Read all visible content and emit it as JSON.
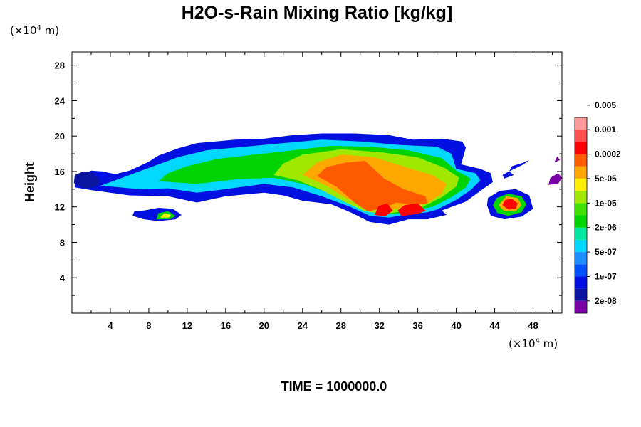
{
  "chart_data": {
    "type": "heatmap",
    "title": "H2O-s-Rain Mixing Ratio [kg/kg]",
    "ylabel": "Height",
    "y_unit": "(×10⁴ m)",
    "x_unit": "(×10⁴ m)",
    "unit_base": "(×10",
    "unit_exp": "4",
    "unit_tail": " m)",
    "footer": "TIME = 1000000.0",
    "xlim": [
      0,
      51
    ],
    "ylim": [
      0,
      29.5
    ],
    "x_ticks": [
      4,
      8,
      12,
      16,
      20,
      24,
      28,
      32,
      36,
      40,
      44,
      48
    ],
    "y_ticks": [
      4,
      8,
      12,
      16,
      20,
      24,
      28
    ],
    "x_tick_labels": [
      "4",
      "8",
      "12",
      "16",
      "20",
      "24",
      "28",
      "32",
      "36",
      "40",
      "44",
      "48"
    ],
    "y_tick_labels": [
      "4",
      "8",
      "12",
      "16",
      "20",
      "24",
      "28"
    ],
    "colorbar": {
      "colors": [
        "#7a00a8",
        "#0a14a0",
        "#0010e0",
        "#0050ff",
        "#1e8cff",
        "#00d8ff",
        "#00e6a0",
        "#00d400",
        "#40e000",
        "#a0e800",
        "#ffee00",
        "#ffa800",
        "#ff5a00",
        "#ff0000",
        "#ff5050",
        "#ff9a9a"
      ],
      "labels": [
        "2e-08",
        "1e-07",
        "5e-07",
        "2e-06",
        "1e-05",
        "5e-05",
        "0.0002",
        "0.001",
        "0.005"
      ]
    },
    "regions": [
      {
        "name": "main-cloud",
        "level": 2,
        "points": [
          [
            0.3,
            14.2
          ],
          [
            2,
            13.9
          ],
          [
            6,
            13.3
          ],
          [
            10,
            13.2
          ],
          [
            13,
            12.5
          ],
          [
            16,
            13.2
          ],
          [
            20,
            13.6
          ],
          [
            22,
            13.3
          ],
          [
            24,
            12.7
          ],
          [
            27,
            12.3
          ],
          [
            29,
            11.4
          ],
          [
            31,
            10.3
          ],
          [
            33,
            10
          ],
          [
            35,
            10.6
          ],
          [
            37,
            10.6
          ],
          [
            39,
            11.1
          ],
          [
            38.5,
            11.6
          ],
          [
            41,
            12.6
          ],
          [
            42.5,
            13.8
          ],
          [
            43.8,
            14.8
          ],
          [
            43.6,
            15.8
          ],
          [
            42.5,
            16.3
          ],
          [
            40.5,
            16.8
          ],
          [
            41,
            18.7
          ],
          [
            40.6,
            19.4
          ],
          [
            38.5,
            19.7
          ],
          [
            35.5,
            19.6
          ],
          [
            33,
            20.1
          ],
          [
            29.5,
            20.3
          ],
          [
            26,
            20.3
          ],
          [
            23,
            20.1
          ],
          [
            20,
            19.7
          ],
          [
            17,
            19.6
          ],
          [
            13,
            19.2
          ],
          [
            11,
            18.6
          ],
          [
            9,
            17.8
          ],
          [
            8,
            17.1
          ],
          [
            6,
            16.1
          ],
          [
            4.5,
            15.7
          ],
          [
            3.2,
            16
          ],
          [
            2,
            16.1
          ],
          [
            0.5,
            15.4
          ]
        ]
      },
      {
        "name": "main-cloud",
        "level": 5,
        "points": [
          [
            3,
            14.4
          ],
          [
            7,
            14
          ],
          [
            10,
            14.1
          ],
          [
            13,
            13.6
          ],
          [
            16,
            14
          ],
          [
            20,
            14.6
          ],
          [
            23,
            14.2
          ],
          [
            26,
            13.2
          ],
          [
            29,
            12
          ],
          [
            31,
            11
          ],
          [
            33,
            10.8
          ],
          [
            35,
            11.2
          ],
          [
            37,
            11.4
          ],
          [
            38,
            11.7
          ],
          [
            40,
            12.8
          ],
          [
            41.5,
            13.9
          ],
          [
            42.5,
            15
          ],
          [
            42,
            15.8
          ],
          [
            40,
            16.3
          ],
          [
            39.5,
            18
          ],
          [
            38,
            18.8
          ],
          [
            34,
            19
          ],
          [
            30,
            19.4
          ],
          [
            26,
            19.6
          ],
          [
            22,
            19.2
          ],
          [
            18,
            18.8
          ],
          [
            14,
            18.4
          ],
          [
            11,
            17.6
          ],
          [
            9,
            16.8
          ],
          [
            7,
            16
          ],
          [
            5,
            15.2
          ]
        ]
      },
      {
        "name": "main-cloud",
        "level": 7,
        "points": [
          [
            9,
            14.9
          ],
          [
            13,
            14.6
          ],
          [
            17,
            15.1
          ],
          [
            21,
            15.3
          ],
          [
            24,
            14.6
          ],
          [
            27,
            13.5
          ],
          [
            29.5,
            12.2
          ],
          [
            31.5,
            11.3
          ],
          [
            33.5,
            11.2
          ],
          [
            35.5,
            11.6
          ],
          [
            37.5,
            12
          ],
          [
            39.5,
            13.1
          ],
          [
            41,
            14.2
          ],
          [
            41.5,
            15.2
          ],
          [
            40,
            16.1
          ],
          [
            38.5,
            17.5
          ],
          [
            35,
            18.4
          ],
          [
            31,
            18.8
          ],
          [
            27,
            18.9
          ],
          [
            23,
            18.4
          ],
          [
            19,
            17.9
          ],
          [
            15,
            17.4
          ],
          [
            12,
            16.6
          ],
          [
            10,
            15.8
          ]
        ]
      },
      {
        "name": "main-cloud",
        "level": 9,
        "points": [
          [
            21,
            15.6
          ],
          [
            23.5,
            15
          ],
          [
            26,
            13.9
          ],
          [
            28.5,
            12.5
          ],
          [
            30.5,
            11.5
          ],
          [
            32.5,
            11.2
          ],
          [
            34.5,
            11.5
          ],
          [
            36.5,
            12
          ],
          [
            38.5,
            13.1
          ],
          [
            40,
            14.3
          ],
          [
            40.3,
            15.3
          ],
          [
            38.8,
            16.4
          ],
          [
            36,
            17.6
          ],
          [
            32,
            18.2
          ],
          [
            28,
            18.5
          ],
          [
            24,
            17.9
          ],
          [
            22,
            16.9
          ]
        ]
      },
      {
        "name": "main-cloud",
        "level": 11,
        "points": [
          [
            24,
            15.6
          ],
          [
            26.5,
            14.4
          ],
          [
            28.5,
            13
          ],
          [
            30.5,
            12
          ],
          [
            32.5,
            11.6
          ],
          [
            34.5,
            11.9
          ],
          [
            37,
            12.4
          ],
          [
            38.5,
            13.5
          ],
          [
            39,
            14.6
          ],
          [
            37.5,
            15.6
          ],
          [
            35,
            16.4
          ],
          [
            31.5,
            17.6
          ],
          [
            28,
            17.9
          ],
          [
            25.5,
            17
          ]
        ]
      },
      {
        "name": "main-cloud",
        "level": 12,
        "points": [
          [
            25.5,
            15.5
          ],
          [
            27.5,
            14.3
          ],
          [
            29.5,
            12.4
          ],
          [
            30.8,
            11.5
          ],
          [
            32.2,
            11.8
          ],
          [
            33.8,
            12.5
          ],
          [
            35.5,
            12.2
          ],
          [
            37,
            12.4
          ],
          [
            36.8,
            13.2
          ],
          [
            34.5,
            14
          ],
          [
            32.5,
            15.2
          ],
          [
            30.5,
            17.2
          ],
          [
            28.5,
            17
          ],
          [
            26.5,
            16.5
          ]
        ]
      },
      {
        "name": "main-cloud",
        "level": 13,
        "points": [
          [
            31.5,
            11.1
          ],
          [
            32.6,
            10.9
          ],
          [
            33.4,
            11.6
          ],
          [
            32.8,
            12.4
          ],
          [
            31.9,
            12.1
          ]
        ]
      },
      {
        "name": "main-cloud",
        "level": 13,
        "points": [
          [
            34.3,
            11
          ],
          [
            36,
            11.2
          ],
          [
            36.8,
            11.6
          ],
          [
            36,
            12.4
          ],
          [
            34.6,
            12.2
          ],
          [
            33.9,
            11.6
          ]
        ]
      },
      {
        "name": "left-blob",
        "level": 1,
        "points": [
          [
            0.2,
            14.7
          ],
          [
            1.2,
            14.1
          ],
          [
            2.4,
            14.2
          ],
          [
            3,
            14.8
          ],
          [
            2.4,
            15.8
          ],
          [
            1.2,
            16
          ],
          [
            0.3,
            15.6
          ]
        ]
      },
      {
        "name": "small-cloud",
        "level": 2,
        "points": [
          [
            6.3,
            11
          ],
          [
            7.5,
            10.6
          ],
          [
            9,
            10.4
          ],
          [
            10.8,
            10.6
          ],
          [
            11.4,
            11.1
          ],
          [
            10.5,
            11.8
          ],
          [
            9,
            11.9
          ],
          [
            7.5,
            11.6
          ],
          [
            6.5,
            11.5
          ]
        ]
      },
      {
        "name": "small-cloud",
        "level": 7,
        "points": [
          [
            8.8,
            10.6
          ],
          [
            10.2,
            10.6
          ],
          [
            10.8,
            11
          ],
          [
            10,
            11.5
          ],
          [
            9,
            11.3
          ]
        ]
      },
      {
        "name": "small-cloud",
        "level": 10,
        "points": [
          [
            9.2,
            10.8
          ],
          [
            10.1,
            10.8
          ],
          [
            10.3,
            11.1
          ],
          [
            9.6,
            11.3
          ]
        ]
      },
      {
        "name": "right-cell",
        "level": 2,
        "points": [
          [
            43.2,
            12.2
          ],
          [
            43.6,
            11
          ],
          [
            45,
            10.6
          ],
          [
            46.8,
            10.9
          ],
          [
            48,
            11.8
          ],
          [
            47.6,
            13.3
          ],
          [
            46.2,
            14
          ],
          [
            44.5,
            13.8
          ],
          [
            43.3,
            13
          ]
        ]
      },
      {
        "name": "right-cell",
        "level": 7,
        "points": [
          [
            43.8,
            12.2
          ],
          [
            44.3,
            11.3
          ],
          [
            45.4,
            11
          ],
          [
            46.8,
            11.4
          ],
          [
            47.3,
            12.3
          ],
          [
            46.8,
            13.2
          ],
          [
            45.4,
            13.5
          ],
          [
            44.2,
            13
          ]
        ]
      },
      {
        "name": "right-cell",
        "level": 11,
        "points": [
          [
            44.4,
            12.2
          ],
          [
            45,
            11.5
          ],
          [
            46.2,
            11.5
          ],
          [
            46.8,
            12.2
          ],
          [
            46.4,
            13
          ],
          [
            45.2,
            13.2
          ]
        ]
      },
      {
        "name": "right-cell",
        "level": 13,
        "points": [
          [
            44.8,
            12.2
          ],
          [
            45.4,
            11.7
          ],
          [
            46.2,
            11.8
          ],
          [
            46.4,
            12.4
          ],
          [
            45.8,
            12.9
          ],
          [
            45.1,
            12.8
          ]
        ]
      },
      {
        "name": "wisp",
        "level": 2,
        "points": [
          [
            45.5,
            16
          ],
          [
            47,
            16.8
          ],
          [
            47.6,
            17.3
          ],
          [
            47,
            17
          ],
          [
            45.8,
            16.6
          ]
        ]
      },
      {
        "name": "wisp",
        "level": 2,
        "points": [
          [
            45,
            15.2
          ],
          [
            46,
            15.6
          ],
          [
            45.5,
            16
          ],
          [
            44.8,
            15.6
          ]
        ]
      },
      {
        "name": "edge-wisp",
        "level": 0,
        "points": [
          [
            49.6,
            14.5
          ],
          [
            50.6,
            14.6
          ],
          [
            51,
            15.3
          ],
          [
            50.6,
            15.8
          ],
          [
            49.8,
            15.3
          ]
        ]
      },
      {
        "name": "edge-wisp",
        "level": 0,
        "points": [
          [
            50.2,
            17
          ],
          [
            50.8,
            17.3
          ],
          [
            50.5,
            17.7
          ]
        ]
      }
    ]
  }
}
